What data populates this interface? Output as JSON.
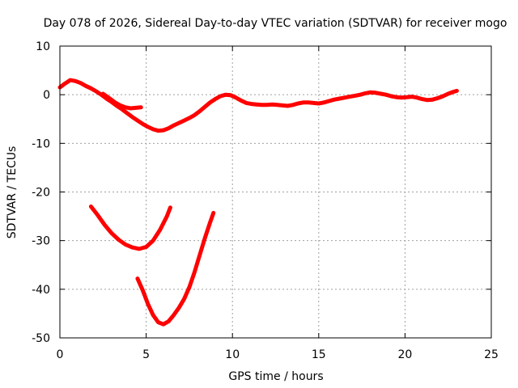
{
  "chart_data": {
    "type": "line",
    "title": "Day 078 of 2026, Sidereal Day-to-day VTEC variation (SDTVAR) for receiver mogo",
    "xlabel": "GPS time / hours",
    "ylabel": "SDTVAR / TECUs",
    "xlim": [
      0,
      25
    ],
    "ylim": [
      -50,
      10
    ],
    "xticks": [
      0,
      5,
      10,
      15,
      20,
      25
    ],
    "yticks": [
      10,
      0,
      -10,
      -20,
      -30,
      -40,
      -50
    ],
    "grid": true,
    "color": "#ff0000",
    "series": [
      {
        "name": "main-trace",
        "x": [
          0.0,
          0.3,
          0.6,
          0.9,
          1.2,
          1.5,
          1.8,
          2.1,
          2.4,
          2.7,
          3.0,
          3.3,
          3.6,
          3.9,
          4.2,
          4.5,
          4.8,
          5.1,
          5.4,
          5.7,
          6.0,
          6.3,
          6.6,
          6.9,
          7.2,
          7.5,
          7.8,
          8.1,
          8.4,
          8.7,
          9.0,
          9.3,
          9.6,
          9.9,
          10.2,
          10.5,
          10.8,
          11.1,
          11.4,
          11.7,
          12.0,
          12.3,
          12.6,
          12.9,
          13.2,
          13.5,
          13.8,
          14.1,
          14.4,
          14.7,
          15.0,
          15.3,
          15.6,
          15.9,
          16.2,
          16.5,
          16.8,
          17.1,
          17.4,
          17.7,
          18.0,
          18.3,
          18.6,
          18.9,
          19.2,
          19.5,
          19.8,
          20.1,
          20.4,
          20.7,
          21.0,
          21.3,
          21.6,
          21.9,
          22.2,
          22.5,
          22.8,
          23.0
        ],
        "y": [
          1.5,
          2.3,
          3.0,
          2.8,
          2.4,
          1.8,
          1.3,
          0.7,
          0.0,
          -0.8,
          -1.5,
          -2.3,
          -3.0,
          -3.8,
          -4.6,
          -5.3,
          -6.0,
          -6.6,
          -7.1,
          -7.4,
          -7.3,
          -6.9,
          -6.3,
          -5.8,
          -5.3,
          -4.8,
          -4.2,
          -3.4,
          -2.5,
          -1.6,
          -0.9,
          -0.3,
          0.0,
          -0.1,
          -0.6,
          -1.2,
          -1.7,
          -1.9,
          -2.0,
          -2.1,
          -2.1,
          -2.0,
          -2.1,
          -2.2,
          -2.3,
          -2.1,
          -1.8,
          -1.6,
          -1.6,
          -1.7,
          -1.8,
          -1.6,
          -1.3,
          -1.0,
          -0.8,
          -0.6,
          -0.4,
          -0.2,
          0.0,
          0.3,
          0.5,
          0.4,
          0.2,
          0.0,
          -0.3,
          -0.5,
          -0.6,
          -0.5,
          -0.4,
          -0.6,
          -0.9,
          -1.1,
          -1.0,
          -0.7,
          -0.3,
          0.2,
          0.6,
          0.8
        ]
      },
      {
        "name": "early-branch",
        "x": [
          2.5,
          2.9,
          3.2,
          3.5,
          3.8,
          4.1,
          4.4,
          4.7
        ],
        "y": [
          0.2,
          -0.8,
          -1.6,
          -2.2,
          -2.6,
          -2.8,
          -2.7,
          -2.6
        ]
      },
      {
        "name": "arc-a",
        "x": [
          1.8,
          2.2,
          2.6,
          3.0,
          3.4,
          3.8,
          4.2,
          4.6,
          5.0,
          5.4,
          5.8,
          6.2,
          6.4
        ],
        "y": [
          -23.0,
          -24.8,
          -26.8,
          -28.5,
          -29.8,
          -30.8,
          -31.4,
          -31.7,
          -31.3,
          -30.0,
          -27.8,
          -25.0,
          -23.2
        ]
      },
      {
        "name": "arc-b",
        "x": [
          4.5,
          4.8,
          5.1,
          5.4,
          5.7,
          6.0,
          6.3,
          6.6,
          6.9,
          7.2,
          7.5,
          7.8,
          8.1,
          8.4,
          8.7,
          8.9
        ],
        "y": [
          -37.8,
          -40.2,
          -43.0,
          -45.3,
          -46.8,
          -47.2,
          -46.6,
          -45.3,
          -43.8,
          -42.0,
          -39.6,
          -36.5,
          -33.0,
          -29.5,
          -26.3,
          -24.3
        ]
      }
    ]
  }
}
